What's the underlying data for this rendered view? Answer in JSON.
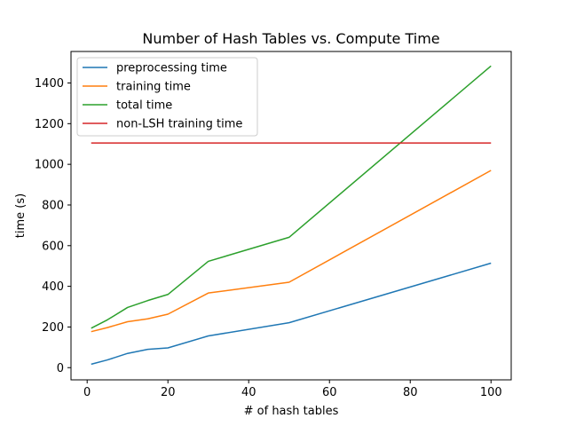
{
  "chart_data": {
    "type": "line",
    "title": "Number of Hash Tables vs. Compute Time",
    "xlabel": "# of hash tables",
    "ylabel": "time (s)",
    "xlim": [
      -4,
      105
    ],
    "ylim": [
      -60,
      1555
    ],
    "xticks": [
      0,
      20,
      40,
      60,
      80,
      100
    ],
    "yticks": [
      0,
      200,
      400,
      600,
      800,
      1000,
      1200,
      1400
    ],
    "grid": false,
    "legend_position": "top-left",
    "series": [
      {
        "name": "preprocessing time",
        "color": "#1f77b4",
        "x": [
          1,
          5,
          10,
          15,
          20,
          30,
          50,
          100
        ],
        "y": [
          17,
          38,
          70,
          90,
          97,
          156,
          221,
          514
        ]
      },
      {
        "name": "training time",
        "color": "#ff7f0e",
        "x": [
          1,
          5,
          10,
          15,
          20,
          30,
          50,
          100
        ],
        "y": [
          177,
          197,
          226,
          240,
          263,
          367,
          420,
          970
        ]
      },
      {
        "name": "total time",
        "color": "#2ca02c",
        "x": [
          1,
          5,
          10,
          15,
          20,
          30,
          50,
          100
        ],
        "y": [
          194,
          235,
          296,
          330,
          360,
          523,
          641,
          1484
        ]
      },
      {
        "name": "non-LSH training time",
        "color": "#d62728",
        "x": [
          1,
          100
        ],
        "y": [
          1105,
          1105
        ]
      }
    ]
  }
}
